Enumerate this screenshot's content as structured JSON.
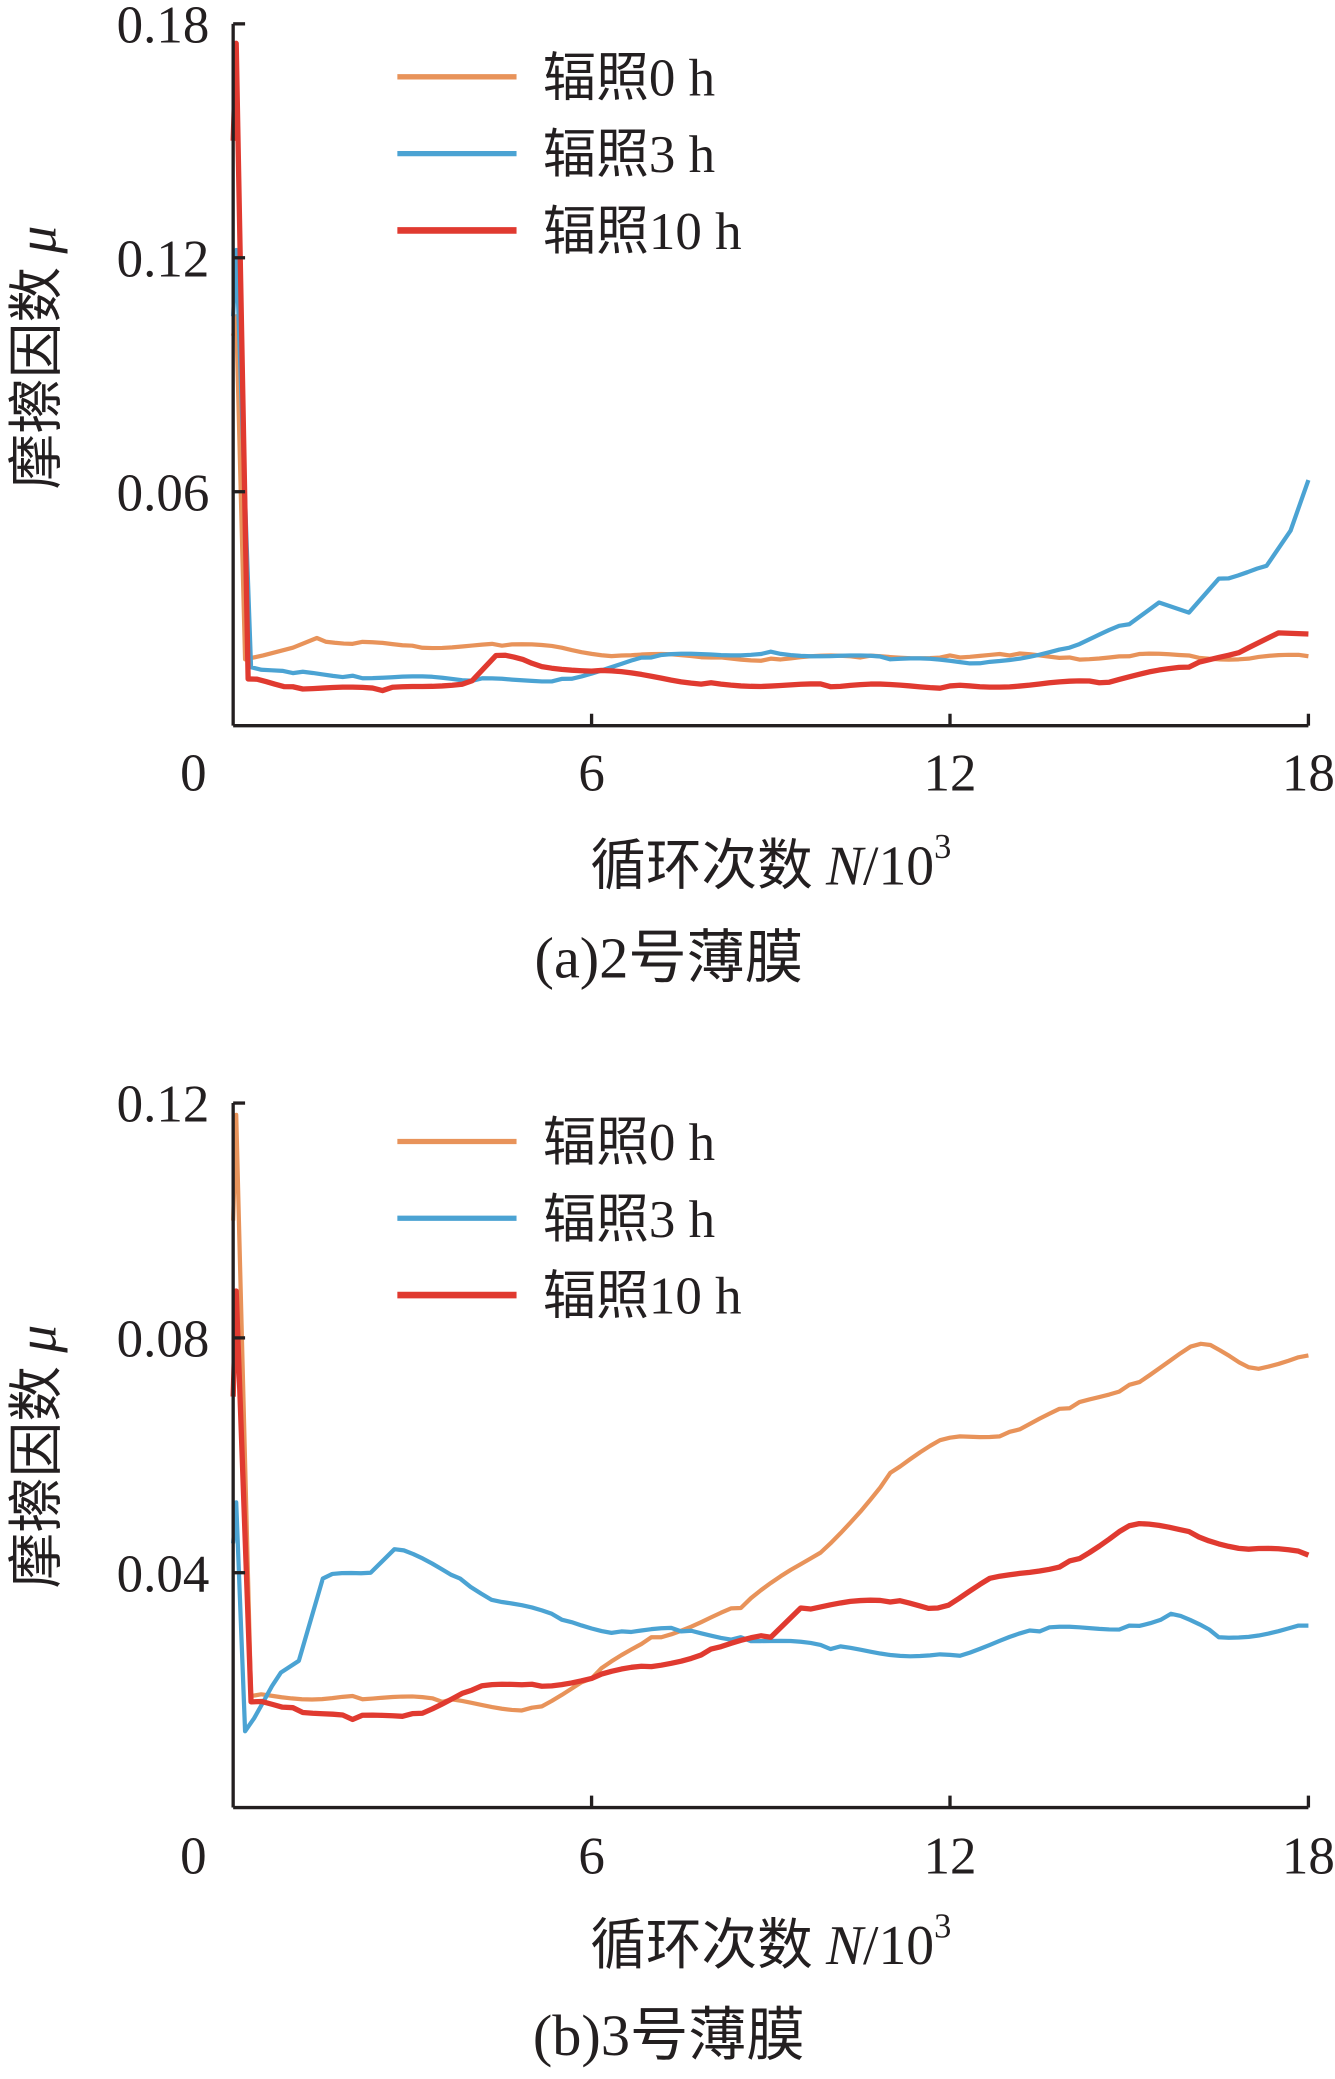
{
  "chart_data": [
    {
      "type": "line",
      "caption": "(a)2号薄膜",
      "xlabel": "循环次数",
      "xlabel_var": "N",
      "xlabel_unit": "/10",
      "xlabel_exp": "3",
      "ylabel": "摩擦因数",
      "ylabel_var": "μ",
      "xlim": [
        0,
        18
      ],
      "ylim": [
        0,
        0.18
      ],
      "xticks": [
        "0",
        "6",
        "12",
        "18"
      ],
      "xtick_values": [
        0,
        6,
        12,
        18
      ],
      "yticks": [
        "0.06",
        "0.12",
        "0.18"
      ],
      "ytick_values": [
        0.06,
        0.12,
        0.18
      ],
      "legend_position": "top-center",
      "series": [
        {
          "name": "辐照0 h",
          "color": "#E8935A",
          "x": [
            0,
            0.05,
            0.2,
            0.5,
            1,
            1.4,
            2,
            3,
            4.5,
            5.5,
            6.5,
            8,
            9,
            10.5,
            12,
            13,
            14,
            15,
            16,
            17,
            18
          ],
          "y": [
            0.1,
            0.105,
            0.017,
            0.018,
            0.02,
            0.0225,
            0.021,
            0.0205,
            0.0205,
            0.02,
            0.018,
            0.0175,
            0.0172,
            0.0175,
            0.018,
            0.018,
            0.0175,
            0.0178,
            0.018,
            0.0172,
            0.0178
          ]
        },
        {
          "name": "辐照3 h",
          "color": "#4BA3D3",
          "x": [
            0,
            0.05,
            0.3,
            1,
            2,
            4,
            5.5,
            7,
            9,
            11,
            12.5,
            14,
            15,
            15.5,
            16,
            16.5,
            17.3,
            17.7,
            18
          ],
          "y": [
            0.105,
            0.122,
            0.015,
            0.0135,
            0.0128,
            0.0115,
            0.012,
            0.0175,
            0.019,
            0.017,
            0.016,
            0.02,
            0.026,
            0.0316,
            0.029,
            0.0377,
            0.041,
            0.05,
            0.063
          ]
        },
        {
          "name": "辐照10 h",
          "color": "#E03A30",
          "x": [
            0,
            0.05,
            0.25,
            1,
            2.5,
            4,
            4.4,
            5,
            6,
            8,
            10,
            12,
            14.5,
            16,
            17,
            17.5,
            18
          ],
          "y": [
            0.15,
            0.175,
            0.012,
            0.01,
            0.009,
            0.0115,
            0.018,
            0.016,
            0.014,
            0.011,
            0.01,
            0.0102,
            0.011,
            0.015,
            0.02,
            0.0238,
            0.0235
          ]
        }
      ]
    },
    {
      "type": "line",
      "caption": "(b)3号薄膜",
      "xlabel": "循环次数",
      "xlabel_var": "N",
      "xlabel_unit": "/10",
      "xlabel_exp": "3",
      "ylabel": "摩擦因数",
      "ylabel_var": "μ",
      "xlim": [
        0,
        18
      ],
      "ylim": [
        0,
        0.12
      ],
      "xticks": [
        "0",
        "6",
        "12",
        "18"
      ],
      "xtick_values": [
        0,
        6,
        12,
        18
      ],
      "yticks": [
        "0.04",
        "0.08",
        "0.12"
      ],
      "ytick_values": [
        0.04,
        0.08,
        0.12
      ],
      "legend_position": "top-center",
      "series": [
        {
          "name": "辐照0 h",
          "color": "#E8935A",
          "x": [
            0,
            0.05,
            0.3,
            2,
            3.5,
            5,
            6,
            7,
            8.5,
            10,
            11,
            12,
            13,
            14,
            15,
            16.2,
            17,
            18
          ],
          "y": [
            0.1,
            0.118,
            0.019,
            0.019,
            0.018,
            0.017,
            0.022,
            0.029,
            0.034,
            0.045,
            0.057,
            0.063,
            0.064,
            0.068,
            0.072,
            0.079,
            0.075,
            0.077
          ]
        },
        {
          "name": "辐照3 h",
          "color": "#4BA3D3",
          "x": [
            0,
            0.05,
            0.2,
            0.8,
            1.1,
            1.5,
            2.3,
            2.7,
            3.8,
            4.5,
            5.5,
            6.5,
            7.5,
            8.5,
            10,
            12,
            13.5,
            15,
            15.7,
            16.5,
            18
          ],
          "y": [
            0.045,
            0.052,
            0.013,
            0.023,
            0.025,
            0.039,
            0.04,
            0.044,
            0.039,
            0.035,
            0.032,
            0.03,
            0.03,
            0.029,
            0.027,
            0.026,
            0.03,
            0.031,
            0.033,
            0.029,
            0.031
          ]
        },
        {
          "name": "辐照10 h",
          "color": "#E03A30",
          "x": [
            0,
            0.05,
            0.3,
            1,
            2,
            3,
            4,
            5,
            6,
            7,
            8,
            9,
            9.5,
            11,
            11.8,
            12.5,
            14,
            15,
            16,
            17,
            18
          ],
          "y": [
            0.07,
            0.088,
            0.018,
            0.017,
            0.015,
            0.016,
            0.02,
            0.021,
            0.022,
            0.024,
            0.027,
            0.029,
            0.034,
            0.035,
            0.034,
            0.038,
            0.042,
            0.048,
            0.047,
            0.044,
            0.043
          ]
        }
      ]
    }
  ]
}
